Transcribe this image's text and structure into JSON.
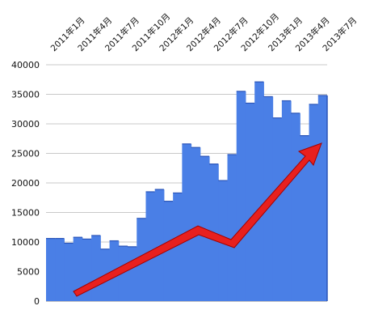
{
  "chart_data": {
    "type": "step-area",
    "categories": [
      "2011年1月",
      null,
      null,
      "2011年4月",
      null,
      null,
      "2011年7月",
      null,
      null,
      "2011年10月",
      null,
      null,
      "2012年1月",
      null,
      null,
      "2012年4月",
      null,
      null,
      "2012年7月",
      null,
      null,
      "2012年10月",
      null,
      null,
      "2013年1月",
      null,
      null,
      "2013年4月",
      null,
      null,
      "2013年7月"
    ],
    "values": [
      10600,
      10600,
      9800,
      10800,
      10500,
      11100,
      8800,
      10200,
      9300,
      9200,
      14000,
      18500,
      18900,
      16900,
      18300,
      26600,
      26000,
      24500,
      23200,
      20400,
      24800,
      35500,
      33500,
      37100,
      34600,
      31000,
      33900,
      31800,
      28000,
      33300,
      34800
    ],
    "color": "#4a7fe6",
    "ylim": [
      0,
      40000
    ],
    "yticks": [
      0,
      5000,
      10000,
      15000,
      20000,
      25000,
      30000,
      35000,
      40000
    ],
    "grid": true
  }
}
